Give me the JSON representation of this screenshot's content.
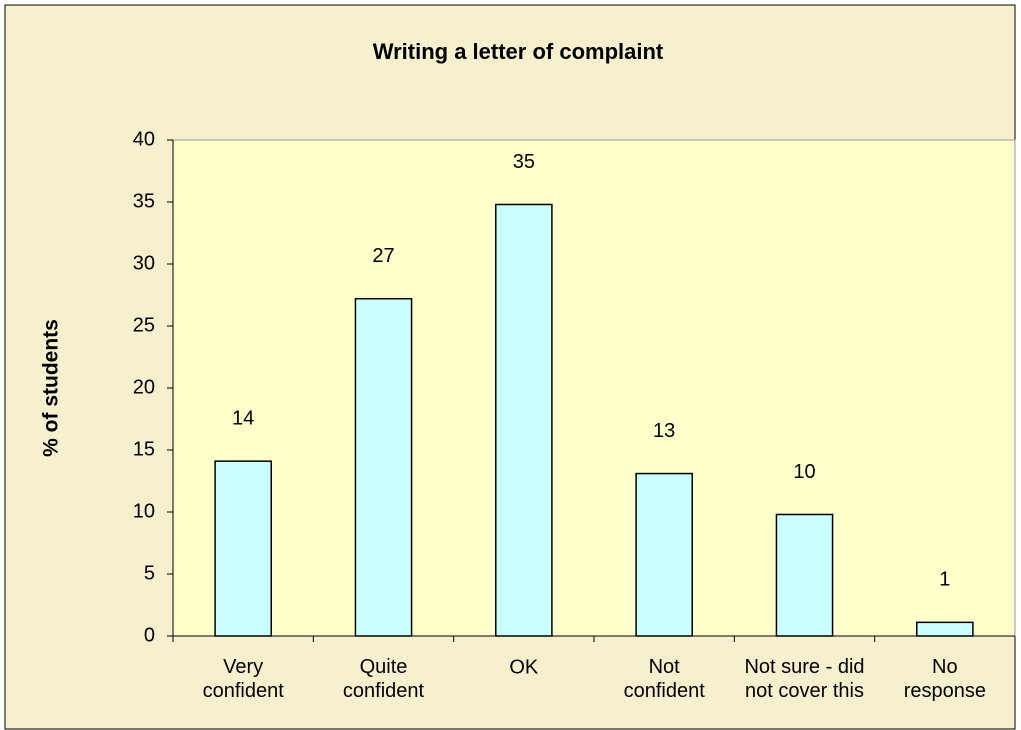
{
  "chart_data": {
    "type": "bar",
    "title": "Writing a letter of complaint",
    "y_label": "% of students",
    "categories": [
      "Very\nconfident",
      "Quite\nconfident",
      "OK",
      "Not\nconfident",
      "Not sure - did\nnot cover this",
      "No\nresponse"
    ],
    "values": [
      14.1,
      27.2,
      34.8,
      13.1,
      9.8,
      1.1
    ],
    "value_labels": [
      "14",
      "27",
      "35",
      "13",
      "10",
      "1"
    ],
    "color": "#ccffff",
    "ylim": [
      0,
      40
    ],
    "yticks": [
      0,
      5,
      10,
      15,
      20,
      25,
      30,
      35,
      40
    ],
    "grid": false
  }
}
